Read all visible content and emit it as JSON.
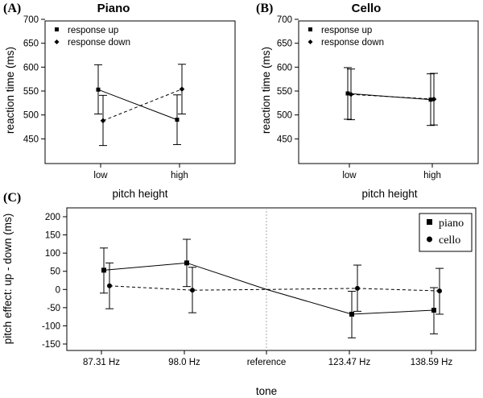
{
  "chart_data": [
    {
      "panel": "(A)",
      "type": "line",
      "title": "Piano",
      "xlabel": "pitch height",
      "ylabel": "reaction time (ms)",
      "categories": [
        "low",
        "high"
      ],
      "ylim": [
        400,
        700
      ],
      "yticks": [
        450,
        500,
        550,
        600,
        650,
        700
      ],
      "legend": {
        "position": "top-left"
      },
      "series": [
        {
          "name": "response up",
          "marker": "square",
          "line": "solid",
          "values": [
            553,
            490
          ],
          "err_low": [
            502,
            438
          ],
          "err_high": [
            605,
            542
          ]
        },
        {
          "name": "response down",
          "marker": "diamond",
          "line": "dashed",
          "values": [
            488,
            554
          ],
          "err_low": [
            436,
            502
          ],
          "err_high": [
            541,
            606
          ]
        }
      ]
    },
    {
      "panel": "(B)",
      "type": "line",
      "title": "Cello",
      "xlabel": "pitch height",
      "ylabel": "reaction time (ms)",
      "categories": [
        "low",
        "high"
      ],
      "ylim": [
        400,
        700
      ],
      "yticks": [
        450,
        500,
        550,
        600,
        650,
        700
      ],
      "legend": {
        "position": "top-left"
      },
      "series": [
        {
          "name": "response up",
          "marker": "square",
          "line": "solid",
          "values": [
            545,
            532
          ],
          "err_low": [
            491,
            478
          ],
          "err_high": [
            599,
            586
          ]
        },
        {
          "name": "response down",
          "marker": "diamond",
          "line": "dashed",
          "values": [
            543,
            533
          ],
          "err_low": [
            490,
            479
          ],
          "err_high": [
            596,
            587
          ]
        }
      ]
    },
    {
      "panel": "(C)",
      "type": "line",
      "title": "",
      "xlabel": "tone",
      "ylabel": "pitch effect: up - down (ms)",
      "categories": [
        "87.31 Hz",
        "98.0 Hz",
        "reference",
        "123.47 Hz",
        "138.59 Hz"
      ],
      "ylim": [
        -160,
        220
      ],
      "yticks": [
        -150,
        -100,
        -50,
        0,
        50,
        100,
        150,
        200
      ],
      "reference_line": "reference",
      "legend": {
        "position": "top-right"
      },
      "series": [
        {
          "name": "piano",
          "marker": "square",
          "line": "solid",
          "values": [
            53,
            73,
            0,
            -68,
            -57
          ],
          "err_low": [
            -10,
            8,
            null,
            -133,
            -122
          ],
          "err_high": [
            114,
            138,
            null,
            -5,
            5
          ]
        },
        {
          "name": "cello",
          "marker": "circle",
          "line": "dashed",
          "values": [
            10,
            -2,
            0,
            3,
            -4
          ],
          "err_low": [
            -53,
            -64,
            null,
            -60,
            -68
          ],
          "err_high": [
            73,
            61,
            null,
            67,
            58
          ]
        }
      ]
    }
  ]
}
